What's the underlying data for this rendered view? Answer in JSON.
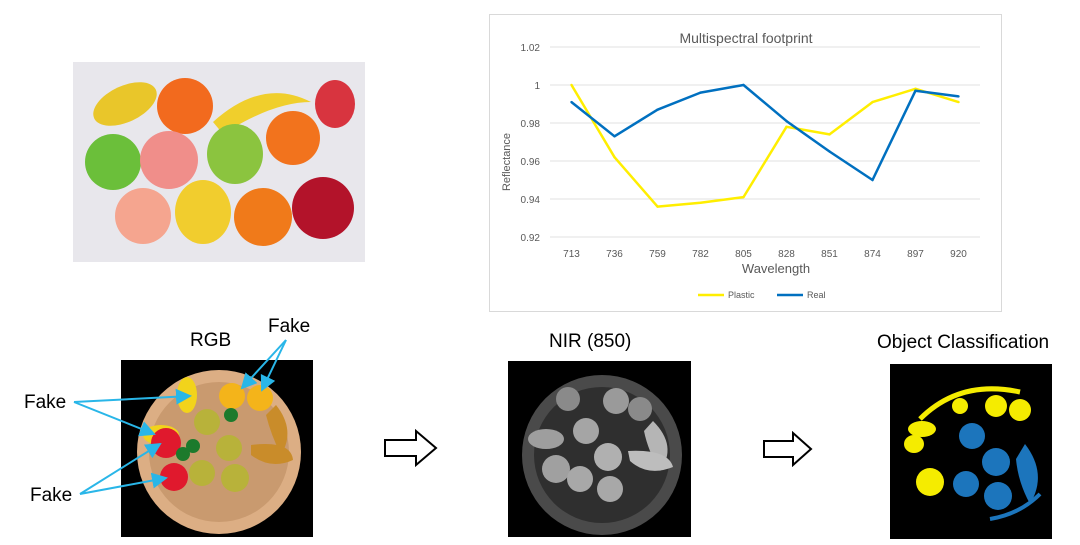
{
  "labels": {
    "rgb": "RGB",
    "nir": "NIR (850)",
    "classification": "Object Classification",
    "fake_top": "Fake",
    "fake_left_upper": "Fake",
    "fake_left_lower": "Fake"
  },
  "colors": {
    "plastic": "#ffee00",
    "real": "#0070c0",
    "pointer_arrow": "#29b6e8",
    "class_fake": "#f5ec00",
    "class_real": "#1c75bc"
  },
  "chart_data": {
    "type": "line",
    "title": "Multispectral footprint",
    "xlabel": "Wavelength",
    "ylabel": "Reflectance",
    "categories": [
      "713",
      "736",
      "759",
      "782",
      "805",
      "828",
      "851",
      "874",
      "897",
      "920"
    ],
    "y_ticks": [
      "0.92",
      "0.94",
      "0.96",
      "0.98",
      "1",
      "1.02"
    ],
    "ylim": [
      0.92,
      1.02
    ],
    "grid": true,
    "legend": "bottom",
    "series": [
      {
        "name": "Plastic",
        "color": "#ffee00",
        "values": [
          1.0,
          0.962,
          0.936,
          0.938,
          0.941,
          0.978,
          0.974,
          0.991,
          0.998,
          0.991
        ]
      },
      {
        "name": "Real",
        "color": "#0070c0",
        "values": [
          0.991,
          0.973,
          0.987,
          0.996,
          1.0,
          0.981,
          0.965,
          0.95,
          0.997,
          0.994
        ]
      }
    ]
  }
}
